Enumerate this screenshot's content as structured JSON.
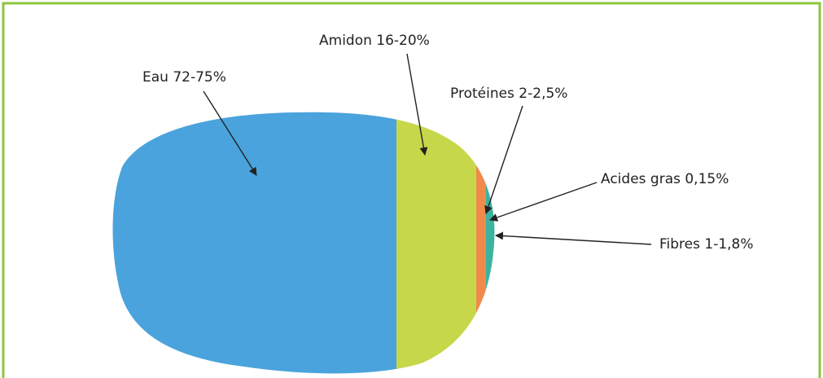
{
  "parts": [
    {
      "label": "Eau 72-75%"
    },
    {
      "label": "Amidon 16-20%"
    },
    {
      "label": "Protéines 2-2,5%"
    },
    {
      "label": "Acides gras 0,15%"
    },
    {
      "label": "Fibres 1-1,8%"
    }
  ]
}
